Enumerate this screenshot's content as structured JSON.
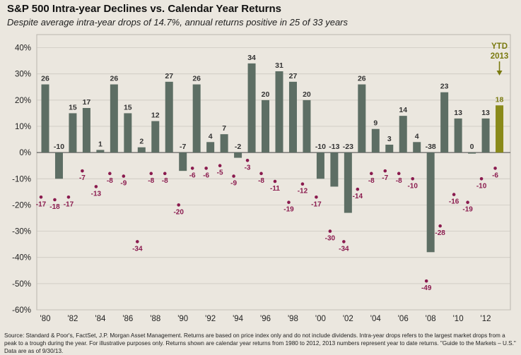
{
  "title": "S&P 500 Intra-year Declines vs. Calendar Year Returns",
  "subtitle": "Despite average intra-year drops of 14.7%, annual returns positive in 25 of 33 years",
  "source": "Source: Standard & Poor's, FactSet, J.P. Morgan Asset Management. Returns are based on price index only and do not include dividends. Intra-year drops refers to the largest market drops from a peak to a trough during the year. For illustrative purposes only. Returns shown are calendar year returns from 1980 to 2012, 2013 numbers represent year to date returns. \"Guide to the Markets – U.S.\" Data are as of 9/30/13.",
  "chart_data": {
    "type": "bar",
    "categories": [
      "'80",
      "'81",
      "'82",
      "'83",
      "'84",
      "'85",
      "'86",
      "'87",
      "'88",
      "'89",
      "'90",
      "'91",
      "'92",
      "'93",
      "'94",
      "'95",
      "'96",
      "'97",
      "'98",
      "'99",
      "'00",
      "'01",
      "'02",
      "'03",
      "'04",
      "'05",
      "'06",
      "'07",
      "'08",
      "'09",
      "'10",
      "'11",
      "'12",
      "'13"
    ],
    "x_tick_labels": [
      "'80",
      "'82",
      "'84",
      "'86",
      "'88",
      "'90",
      "'92",
      "'94",
      "'96",
      "'98",
      "'00",
      "'02",
      "'04",
      "'06",
      "'08",
      "'10",
      "'12"
    ],
    "series": [
      {
        "values": [
          26,
          -10,
          15,
          17,
          1,
          26,
          15,
          2,
          12,
          27,
          -7,
          26,
          4,
          7,
          -2,
          34,
          20,
          31,
          27,
          20,
          -10,
          -13,
          -23,
          26,
          9,
          3,
          14,
          4,
          -38,
          23,
          13,
          0,
          13,
          18
        ]
      },
      {
        "values": [
          -17,
          -18,
          -17,
          -7,
          -13,
          -8,
          -9,
          -34,
          -8,
          -8,
          -20,
          -6,
          -6,
          -5,
          -9,
          -3,
          -8,
          -11,
          -19,
          -12,
          -17,
          -30,
          -34,
          -14,
          -8,
          -7,
          -8,
          -10,
          -49,
          -28,
          -16,
          -19,
          -10,
          -6
        ]
      }
    ],
    "ylim": [
      -60,
      45
    ],
    "y_ticks": [
      -60,
      -50,
      -40,
      -30,
      -20,
      -10,
      0,
      10,
      20,
      30,
      40
    ],
    "y_tick_format": "%",
    "annotation": {
      "lines": [
        "YTD",
        "2013"
      ],
      "year_index": 33
    },
    "colors": {
      "bar": "#5d6e64",
      "bar_ytd": "#8a8a1a",
      "dot": "#8a1a4e",
      "bar_label": "#333333",
      "ytd_label": "#7a7a10",
      "grid": "#c8c4bc"
    }
  }
}
